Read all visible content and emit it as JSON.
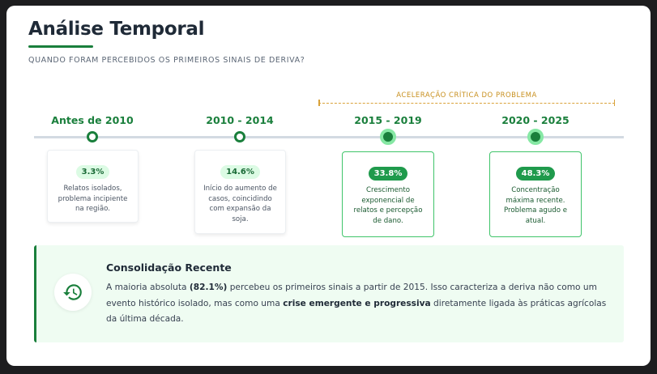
{
  "header": {
    "title": "Análise Temporal",
    "subtitle": "QUANDO FORAM PERCEBIDOS OS PRIMEIROS SINAIS DE DERIVA?"
  },
  "accel_label": "ACELERAÇÃO CRÍTICA DO PROBLEMA",
  "timeline": [
    {
      "period": "Antes de 2010",
      "value": "3.3%",
      "desc": "Relatos isolados, problema incipiente na região."
    },
    {
      "period": "2010 - 2014",
      "value": "14.6%",
      "desc": "Início do aumento de casos, coincidindo com expansão da soja."
    },
    {
      "period": "2015 - 2019",
      "value": "33.8%",
      "desc": "Crescimento exponencial de relatos e percepção de dano."
    },
    {
      "period": "2020 - 2025",
      "value": "48.3%",
      "desc": "Concentração máxima recente. Problema agudo e atual."
    }
  ],
  "callout": {
    "title": "Consolidação Recente",
    "t1": "A maioria absoluta ",
    "b1": "(82.1%)",
    "t2": " percebeu os primeiros sinais a partir de 2015. Isso caracteriza a deriva não como um evento histórico isolado, mas como uma ",
    "b2": "crise emergente e progressiva",
    "t3": " diretamente ligada às práticas agrícolas da última década."
  },
  "colors": {
    "accent": "#1a7f3c",
    "warning": "#d9a23a",
    "callout_bg": "#effcf2"
  }
}
